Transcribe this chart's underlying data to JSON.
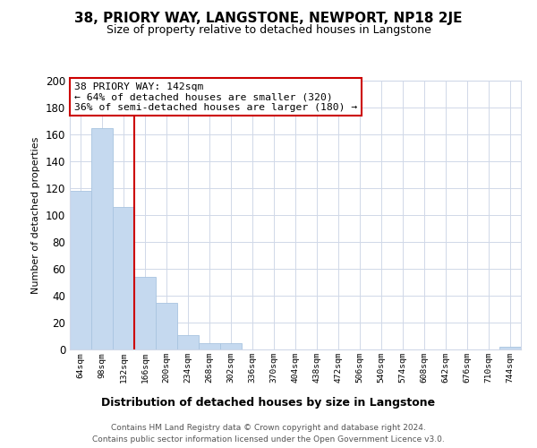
{
  "title": "38, PRIORY WAY, LANGSTONE, NEWPORT, NP18 2JE",
  "subtitle": "Size of property relative to detached houses in Langstone",
  "xlabel": "Distribution of detached houses by size in Langstone",
  "ylabel": "Number of detached properties",
  "bar_labels": [
    "64sqm",
    "98sqm",
    "132sqm",
    "166sqm",
    "200sqm",
    "234sqm",
    "268sqm",
    "302sqm",
    "336sqm",
    "370sqm",
    "404sqm",
    "438sqm",
    "472sqm",
    "506sqm",
    "540sqm",
    "574sqm",
    "608sqm",
    "642sqm",
    "676sqm",
    "710sqm",
    "744sqm"
  ],
  "bar_values": [
    118,
    165,
    106,
    54,
    35,
    11,
    5,
    5,
    0,
    0,
    0,
    0,
    0,
    0,
    0,
    0,
    0,
    0,
    0,
    0,
    2
  ],
  "bar_color": "#c5d9ef",
  "bar_edge_color": "#a8c4e0",
  "vline_x_pos": 2.5,
  "vline_color": "#cc0000",
  "annotation_line1": "38 PRIORY WAY: 142sqm",
  "annotation_line2": "← 64% of detached houses are smaller (320)",
  "annotation_line3": "36% of semi-detached houses are larger (180) →",
  "annotation_box_color": "#ffffff",
  "annotation_box_edge": "#cc0000",
  "ylim": [
    0,
    200
  ],
  "yticks": [
    0,
    20,
    40,
    60,
    80,
    100,
    120,
    140,
    160,
    180,
    200
  ],
  "bg_color": "#ffffff",
  "grid_color": "#d0d8e8",
  "footer_line1": "Contains HM Land Registry data © Crown copyright and database right 2024.",
  "footer_line2": "Contains public sector information licensed under the Open Government Licence v3.0."
}
